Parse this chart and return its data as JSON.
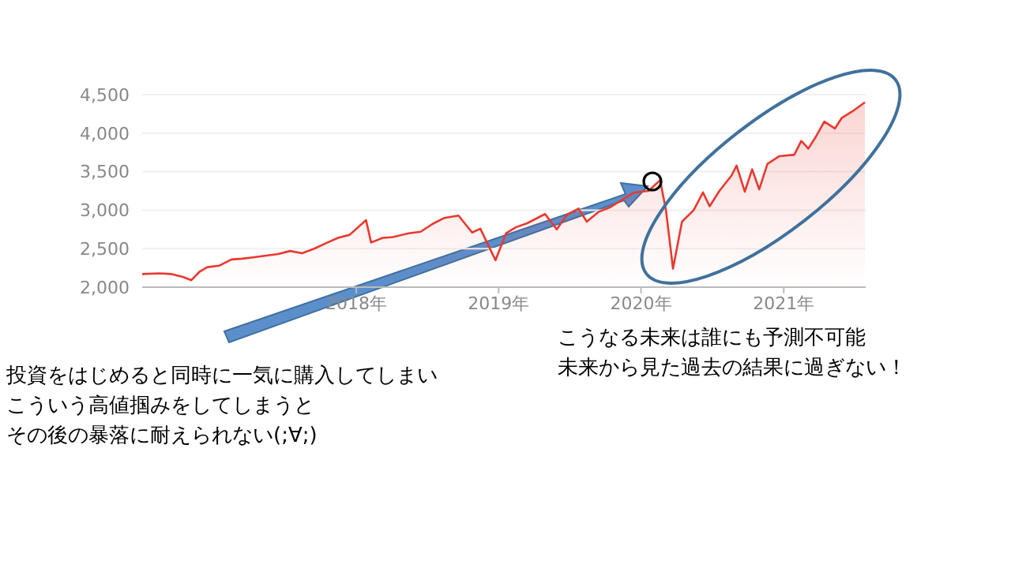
{
  "chart_data": {
    "type": "area",
    "color": "#e8392f",
    "x": [
      "2016-07-01",
      "2016-08-15",
      "2016-09-15",
      "2016-10-15",
      "2016-11-04",
      "2016-11-25",
      "2016-12-15",
      "2017-01-15",
      "2017-02-15",
      "2017-03-15",
      "2017-04-15",
      "2017-05-15",
      "2017-06-15",
      "2017-07-15",
      "2017-08-15",
      "2017-09-15",
      "2017-10-15",
      "2017-11-15",
      "2017-12-15",
      "2018-01-26",
      "2018-02-08",
      "2018-03-10",
      "2018-04-05",
      "2018-05-15",
      "2018-06-15",
      "2018-07-15",
      "2018-08-15",
      "2018-09-20",
      "2018-10-25",
      "2018-11-15",
      "2018-12-24",
      "2019-01-20",
      "2019-02-15",
      "2019-03-15",
      "2019-04-30",
      "2019-05-30",
      "2019-06-25",
      "2019-07-25",
      "2019-08-15",
      "2019-09-15",
      "2019-10-15",
      "2019-11-15",
      "2019-12-15",
      "2020-01-20",
      "2020-02-19",
      "2020-03-05",
      "2020-03-23",
      "2020-04-15",
      "2020-05-15",
      "2020-06-08",
      "2020-06-25",
      "2020-07-20",
      "2020-08-20",
      "2020-09-02",
      "2020-09-23",
      "2020-10-12",
      "2020-10-30",
      "2020-11-20",
      "2020-12-20",
      "2021-01-28",
      "2021-02-15",
      "2021-03-05",
      "2021-03-25",
      "2021-04-15",
      "2021-05-12",
      "2021-05-30",
      "2021-06-25",
      "2021-07-28"
    ],
    "values": [
      2170,
      2180,
      2170,
      2130,
      2090,
      2200,
      2260,
      2280,
      2360,
      2370,
      2390,
      2410,
      2430,
      2470,
      2440,
      2500,
      2570,
      2640,
      2680,
      2870,
      2580,
      2640,
      2650,
      2700,
      2720,
      2820,
      2900,
      2930,
      2710,
      2760,
      2350,
      2700,
      2780,
      2830,
      2950,
      2750,
      2940,
      3020,
      2850,
      2980,
      3040,
      3140,
      3230,
      3250,
      3390,
      3000,
      2240,
      2850,
      3000,
      3230,
      3050,
      3250,
      3450,
      3580,
      3240,
      3530,
      3270,
      3600,
      3700,
      3720,
      3900,
      3800,
      3960,
      4150,
      4060,
      4200,
      4280,
      4400
    ],
    "xlim": [
      "2016-07-01",
      "2021-07-30"
    ],
    "xticks": [
      {
        "value": "2018-01-01",
        "label": "2018年"
      },
      {
        "value": "2019-01-01",
        "label": "2019年"
      },
      {
        "value": "2020-01-01",
        "label": "2020年"
      },
      {
        "value": "2021-01-01",
        "label": "2021年"
      }
    ],
    "ylim": [
      2000,
      4500
    ],
    "yticks": [
      {
        "value": 2000,
        "label": "2,000"
      },
      {
        "value": 2500,
        "label": "2,500"
      },
      {
        "value": 3000,
        "label": "3,000"
      },
      {
        "value": 3500,
        "label": "3,500"
      },
      {
        "value": 4000,
        "label": "4,000"
      },
      {
        "value": 4500,
        "label": "4,500"
      }
    ],
    "grid": "y",
    "annotations": [
      "投資をはじめると同時に一気に購入してしまい",
      "こういう高値掴みをしてしまうと",
      "その後の暴落に耐えられない(;∀;)",
      "こうなる未来は誰にも予測不可能",
      "未来から見た過去の結果に過ぎない！"
    ]
  }
}
